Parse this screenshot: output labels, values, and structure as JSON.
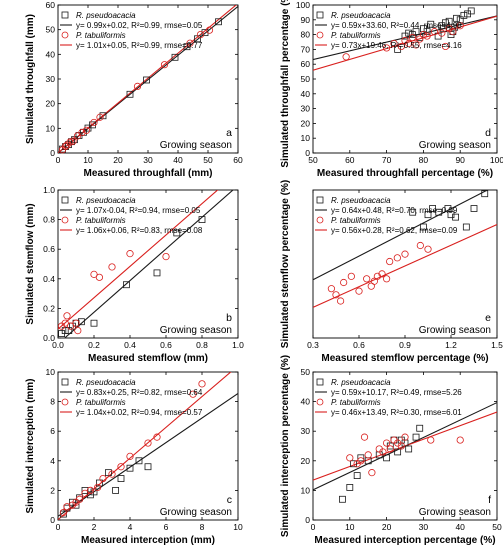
{
  "colors": {
    "black": "#1a1a1a",
    "red": "#d9201e"
  },
  "chart_data": [
    {
      "type": "scatter",
      "panel": "a",
      "annotation": "Growing season",
      "xlabel": "Measured throughfall (mm)",
      "ylabel": "Simulated throughfall (mm)",
      "xlim": [
        0,
        60
      ],
      "ylim": [
        0,
        60
      ],
      "xticks": [
        "0",
        "10",
        "20",
        "30",
        "40",
        "50",
        "60"
      ],
      "yticks": [
        "0",
        "10",
        "20",
        "30",
        "40",
        "50",
        "60"
      ],
      "series": [
        {
          "name": "R. pseudoacacia",
          "marker": "square",
          "color": "#1a1a1a",
          "fit_label": "y= 0.99x+0.02, R²=0.99, rmse=0.05",
          "fit": [
            0.99,
            0.02
          ],
          "x": [
            1.5,
            2.5,
            3.5,
            4.5,
            5.5,
            7,
            8.5,
            10,
            11.5,
            15,
            24,
            29.5,
            39,
            43,
            46.5,
            49,
            53.5
          ],
          "y": [
            1.6,
            2.6,
            3.4,
            4.6,
            5.4,
            7.1,
            8.4,
            10.1,
            11.4,
            15.1,
            23.8,
            29.6,
            38.8,
            43.1,
            46.3,
            48.8,
            53.2
          ]
        },
        {
          "name": "P. tabuliformis",
          "marker": "circle",
          "color": "#d9201e",
          "fit_label": "y= 1.01x+0.05, R²=0.99, rmse=0.77",
          "fit": [
            1.01,
            0.05
          ],
          "x": [
            1.5,
            2.5,
            3,
            4,
            5,
            6.5,
            8,
            9.5,
            12,
            14,
            26.5,
            35.5,
            44,
            47.5,
            50.5
          ],
          "y": [
            1.3,
            2.7,
            3.2,
            4.4,
            4.8,
            6.9,
            8.3,
            9.2,
            12.4,
            14.5,
            27,
            35.8,
            44.5,
            48,
            49.8
          ]
        }
      ]
    },
    {
      "type": "scatter",
      "panel": "d",
      "annotation": "Growing season",
      "xlabel": "Measured throughfall percentage (%)",
      "ylabel": "Simulated throughfall percentage (%)",
      "xlim": [
        50,
        100
      ],
      "ylim": [
        0,
        100
      ],
      "xticks": [
        "50",
        "60",
        "70",
        "80",
        "90",
        "100"
      ],
      "yticks": [
        "0",
        "10",
        "20",
        "30",
        "40",
        "50",
        "60",
        "70",
        "80",
        "90",
        "100"
      ],
      "series": [
        {
          "name": "R. pseudoacacia",
          "marker": "square",
          "color": "#1a1a1a",
          "fit_label": "y= 0.59x+33.60, R²=0.44, rmse=4.98",
          "fit": [
            0.59,
            33.6
          ],
          "x": [
            73,
            75,
            76,
            77,
            78,
            79,
            80,
            81,
            82,
            84,
            85,
            86,
            87,
            88,
            88.5,
            89,
            90,
            91,
            92,
            93,
            85.5,
            87.5
          ],
          "y": [
            70,
            79,
            81,
            80,
            82,
            78,
            84,
            82,
            87,
            79,
            86,
            88,
            89,
            82,
            85,
            91,
            90,
            93,
            94,
            96,
            84,
            80
          ]
        },
        {
          "name": "P. tabuliformis",
          "marker": "circle",
          "color": "#d9201e",
          "fit_label": "y= 0.73x+19.46, R²=0.55, rmse=4.16",
          "fit": [
            0.73,
            19.46
          ],
          "x": [
            59,
            70,
            72,
            74,
            75,
            76,
            77,
            78,
            79,
            80,
            81,
            83,
            85,
            86,
            87,
            88,
            90
          ],
          "y": [
            65,
            71,
            74,
            72,
            76,
            74,
            78,
            73,
            77,
            80,
            79,
            82,
            81,
            72,
            84,
            82,
            86
          ]
        }
      ]
    },
    {
      "type": "scatter",
      "panel": "b",
      "annotation": "Growing season",
      "xlabel": "Measured stemflow (mm)",
      "ylabel": "Simulated stemflow (mm)",
      "xlim": [
        0,
        1.0
      ],
      "ylim": [
        0,
        1.0
      ],
      "xticks": [
        "0.0",
        "0.2",
        "0.4",
        "0.6",
        "0.8",
        "1.0"
      ],
      "yticks": [
        "0.0",
        "0.2",
        "0.4",
        "0.6",
        "0.8",
        "1.0"
      ],
      "series": [
        {
          "name": "R. pseudoacacia",
          "marker": "square",
          "color": "#1a1a1a",
          "fit_label": "y= 1.07x-0.04, R²=0.94, rmse=0.05",
          "fit": [
            1.07,
            -0.04
          ],
          "x": [
            0.02,
            0.04,
            0.06,
            0.08,
            0.1,
            0.13,
            0.2,
            0.38,
            0.55,
            0.66,
            0.8
          ],
          "y": [
            0.03,
            0.05,
            0.05,
            0.08,
            0.1,
            0.11,
            0.1,
            0.36,
            0.44,
            0.71,
            0.8
          ]
        },
        {
          "name": "P. tabuliformis",
          "marker": "circle",
          "color": "#d9201e",
          "fit_label": "y= 1.06x+0.06, R²=0.83, rmse=0.08",
          "fit": [
            1.06,
            0.06
          ],
          "x": [
            0.02,
            0.04,
            0.05,
            0.07,
            0.1,
            0.11,
            0.2,
            0.23,
            0.3,
            0.4,
            0.6
          ],
          "y": [
            0.08,
            0.1,
            0.15,
            0.08,
            0.1,
            0.05,
            0.43,
            0.41,
            0.48,
            0.57,
            0.55
          ]
        }
      ]
    },
    {
      "type": "scatter",
      "panel": "e",
      "annotation": "Growing season",
      "xlabel": "Measured stemflow percentage (%)",
      "ylabel": "Simulated stemflow percentage (%)",
      "xlim": [
        0.3,
        1.5
      ],
      "ylim": [
        0.2,
        1.4
      ],
      "xticks": [
        "0.3",
        "0.6",
        "0.9",
        "1.2",
        "1.5"
      ],
      "yticks": [],
      "series": [
        {
          "name": "R. pseudoacacia",
          "marker": "square",
          "color": "#1a1a1a",
          "fit_label": "y= 0.64x+0.48, R²=0.70, rmse=0.09",
          "fit": [
            0.64,
            0.48
          ],
          "x": [
            0.95,
            1.02,
            1.05,
            1.08,
            1.12,
            1.18,
            1.2,
            1.23,
            1.3,
            1.35,
            1.42
          ],
          "y": [
            1.22,
            1.1,
            1.2,
            1.25,
            1.22,
            1.25,
            1.2,
            1.18,
            1.1,
            1.25,
            1.37
          ]
        },
        {
          "name": "P. tabuliformis",
          "marker": "circle",
          "color": "#d9201e",
          "fit_label": "y= 0.56x+0.28, R²=0.62, rmse=0.09",
          "fit": [
            0.56,
            0.28
          ],
          "x": [
            0.42,
            0.45,
            0.48,
            0.5,
            0.55,
            0.6,
            0.65,
            0.68,
            0.7,
            0.72,
            0.75,
            0.78,
            0.8,
            0.85,
            0.9,
            1.0,
            1.05
          ],
          "y": [
            0.6,
            0.55,
            0.5,
            0.65,
            0.7,
            0.58,
            0.68,
            0.62,
            0.66,
            0.7,
            0.72,
            0.68,
            0.82,
            0.85,
            0.88,
            0.95,
            0.92
          ]
        }
      ]
    },
    {
      "type": "scatter",
      "panel": "c",
      "annotation": "Growing season",
      "xlabel": "Measured interception (mm)",
      "ylabel": "Simulated interception (mm)",
      "xlim": [
        0,
        10
      ],
      "ylim": [
        0,
        10
      ],
      "xticks": [
        "0",
        "2",
        "4",
        "6",
        "8",
        "10"
      ],
      "yticks": [
        "0",
        "2",
        "4",
        "6",
        "8",
        "10"
      ],
      "series": [
        {
          "name": "R. pseudoacacia",
          "marker": "square",
          "color": "#1a1a1a",
          "fit_label": "y= 0.83x+0.25, R²=0.82, rmse=0.64",
          "fit": [
            0.83,
            0.25
          ],
          "x": [
            0.3,
            0.5,
            0.8,
            1.0,
            1.2,
            1.5,
            1.8,
            2.0,
            2.3,
            2.8,
            3.2,
            3.5,
            4.0,
            4.5,
            5.0
          ],
          "y": [
            0.4,
            0.8,
            1.2,
            1.0,
            1.5,
            2.0,
            1.7,
            1.9,
            2.5,
            3.2,
            2.0,
            2.8,
            3.5,
            4.0,
            3.6
          ]
        },
        {
          "name": "P. tabuliformis",
          "marker": "circle",
          "color": "#d9201e",
          "fit_label": "y= 1.04x+0.02, R²=0.94, rmse=0.57",
          "fit": [
            1.04,
            0.02
          ],
          "x": [
            0.3,
            0.5,
            0.8,
            1.0,
            1.2,
            1.5,
            1.8,
            2.2,
            2.5,
            3.0,
            3.5,
            4.0,
            5.0,
            5.5,
            7.5,
            8.0
          ],
          "y": [
            0.5,
            0.9,
            1.0,
            1.2,
            1.4,
            1.8,
            2.0,
            2.2,
            2.8,
            3.1,
            3.6,
            4.3,
            5.2,
            5.6,
            8.5,
            9.2
          ]
        }
      ]
    },
    {
      "type": "scatter",
      "panel": "f",
      "annotation": "Growing season",
      "xlabel": "Measured interception percentage (%)",
      "ylabel": "Simulated interception percentage (%)",
      "xlim": [
        0,
        50
      ],
      "ylim": [
        0,
        50
      ],
      "xticks": [
        "0",
        "10",
        "20",
        "30",
        "40",
        "50"
      ],
      "yticks": [
        "0",
        "10",
        "20",
        "30",
        "40",
        "50"
      ],
      "series": [
        {
          "name": "R. pseudoacacia",
          "marker": "square",
          "color": "#1a1a1a",
          "fit_label": "y= 0.59x+10.17, R²=0.49, rmse=5.26",
          "fit": [
            0.59,
            10.17
          ],
          "x": [
            8,
            10,
            11,
            12,
            13,
            15,
            18,
            20,
            21,
            22,
            23,
            24,
            25,
            26,
            28,
            29
          ],
          "y": [
            7,
            11,
            19,
            15,
            21,
            20,
            22,
            21,
            25,
            27,
            23,
            27,
            26,
            24,
            28,
            31
          ]
        },
        {
          "name": "P. tabuliformis",
          "marker": "circle",
          "color": "#d9201e",
          "fit_label": "y= 0.46x+13.49, R²=0.30, rmse=6.01",
          "fit": [
            0.46,
            13.49
          ],
          "x": [
            10,
            12,
            13,
            14,
            15,
            16,
            18,
            19,
            20,
            21,
            22,
            23,
            24,
            25,
            32,
            40
          ],
          "y": [
            21,
            19,
            20,
            28,
            22,
            16,
            24,
            23,
            26,
            24,
            27,
            26,
            25,
            28,
            27,
            27
          ]
        }
      ]
    }
  ]
}
